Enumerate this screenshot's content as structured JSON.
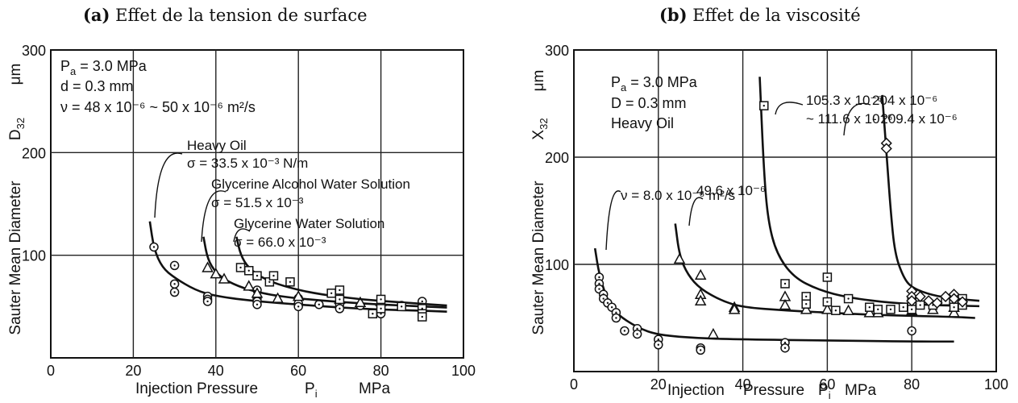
{
  "chart_data": [
    {
      "panel": "(a)",
      "title": "Effet de la tension de surface",
      "type": "scatter",
      "xlabel": "Injection Pressure",
      "xsymbol": "P",
      "xsymbol_sub": "i",
      "xunit": "MPa",
      "ylabel": "Sauter Mean Diameter",
      "ysymbol": "D",
      "ysymbol_sub": "32",
      "yunit": "μm",
      "xlim": [
        0,
        100
      ],
      "ylim": [
        0,
        300
      ],
      "xticks": [
        "0",
        "20",
        "40",
        "60",
        "80",
        "100"
      ],
      "yticks": [
        "100",
        "200",
        "300"
      ],
      "grid": true,
      "conditions": [
        {
          "sym": "P",
          "sub": "a",
          "rest": " = 3.0  MPa"
        },
        {
          "sym": "d",
          "sub": "",
          "rest": " = 0.3  mm"
        },
        {
          "sym": "ν",
          "sub": "",
          "rest": " = 48 x 10⁻⁶ ~ 50 x 10⁻⁶   m²/s"
        }
      ],
      "annotations": [
        {
          "id": "a-heavy-oil",
          "line1": "Heavy  Oil",
          "line2": "σ = 33.5 x 10⁻³  N/m"
        },
        {
          "id": "a-glyc-alcohol",
          "line1": "Glycerine  Alcohol  Water  Solution",
          "line2": "σ = 51.5 x 10⁻³"
        },
        {
          "id": "a-glyc-water",
          "line1": "Glycerine  Water  Solution",
          "line2": "σ = 66.0 x 10⁻³"
        }
      ],
      "series": [
        {
          "marker": "circle",
          "points": [
            [
              25,
              108
            ],
            [
              30,
              90
            ],
            [
              30,
              72
            ],
            [
              30,
              64
            ],
            [
              38,
              60
            ],
            [
              38,
              57
            ],
            [
              38,
              55
            ],
            [
              50,
              66
            ],
            [
              50,
              58
            ],
            [
              50,
              55
            ],
            [
              50,
              52
            ],
            [
              60,
              58
            ],
            [
              60,
              53
            ],
            [
              60,
              50
            ],
            [
              65,
              52
            ],
            [
              70,
              52
            ],
            [
              70,
              48
            ],
            [
              75,
              51
            ],
            [
              80,
              50
            ],
            [
              80,
              47
            ],
            [
              80,
              43
            ],
            [
              85,
              51
            ],
            [
              90,
              55
            ],
            [
              90,
              49
            ]
          ],
          "curve": [
            [
              24,
              133
            ],
            [
              25,
              106
            ],
            [
              27,
              88
            ],
            [
              30,
              78
            ],
            [
              35,
              66
            ],
            [
              40,
              60
            ],
            [
              50,
              55
            ],
            [
              60,
              52
            ],
            [
              70,
              49
            ],
            [
              80,
              47
            ],
            [
              90,
              46
            ],
            [
              96,
              45
            ]
          ]
        },
        {
          "marker": "triangle",
          "points": [
            [
              38,
              88
            ],
            [
              40,
              82
            ],
            [
              42,
              77
            ],
            [
              48,
              70
            ],
            [
              50,
              63
            ],
            [
              55,
              58
            ],
            [
              60,
              60
            ],
            [
              70,
              57
            ],
            [
              75,
              54
            ],
            [
              80,
              55
            ]
          ],
          "curve": [
            [
              37,
              118
            ],
            [
              38,
              96
            ],
            [
              40,
              83
            ],
            [
              43,
              74
            ],
            [
              48,
              66
            ],
            [
              55,
              60
            ],
            [
              65,
              56
            ],
            [
              75,
              53
            ],
            [
              85,
              51
            ],
            [
              96,
              49
            ]
          ]
        },
        {
          "marker": "square",
          "points": [
            [
              46,
              88
            ],
            [
              48,
              85
            ],
            [
              50,
              80
            ],
            [
              53,
              74
            ],
            [
              54,
              80
            ],
            [
              58,
              74
            ],
            [
              68,
              63
            ],
            [
              70,
              66
            ],
            [
              70,
              57
            ],
            [
              78,
              43
            ],
            [
              80,
              48
            ],
            [
              80,
              57
            ],
            [
              85,
              50
            ],
            [
              90,
              48
            ],
            [
              90,
              43
            ],
            [
              90,
              40
            ]
          ],
          "curve": [
            [
              45,
              118
            ],
            [
              46,
              100
            ],
            [
              48,
              87
            ],
            [
              52,
              76
            ],
            [
              58,
              68
            ],
            [
              65,
              62
            ],
            [
              75,
              57
            ],
            [
              85,
              54
            ],
            [
              96,
              51
            ]
          ]
        }
      ]
    },
    {
      "panel": "(b)",
      "title": "Effet de la viscosité",
      "type": "scatter",
      "xlabel": "Injection",
      "xlabel2": "Pressure",
      "xsymbol": "P",
      "xsymbol_sub": "i",
      "xunit": "MPa",
      "ylabel": "Sauter Mean Diameter",
      "ysymbol": "X",
      "ysymbol_sub": "32",
      "yunit": "μm",
      "xlim": [
        0,
        100
      ],
      "ylim": [
        0,
        300
      ],
      "xticks": [
        "0",
        "20",
        "40",
        "60",
        "80",
        "100"
      ],
      "yticks": [
        "100",
        "200",
        "300"
      ],
      "grid": true,
      "conditions": [
        {
          "sym": "P",
          "sub": "a",
          "rest": " = 3.0   MPa"
        },
        {
          "sym": "D",
          "sub": "",
          "rest": " = 0.3  mm"
        },
        {
          "sym": "Heavy  Oil",
          "sub": "",
          "rest": ""
        }
      ],
      "annotations": [
        {
          "id": "b-nu-8",
          "line1": "ν = 8.0 x 10⁻⁶  m²/s",
          "line2": ""
        },
        {
          "id": "b-nu-49",
          "line1": "49.6 x 10⁻⁶",
          "line2": ""
        },
        {
          "id": "b-nu-105",
          "line1": "105.3 x 10⁻⁶",
          "line2": "~ 111.6 x 10⁻⁶"
        },
        {
          "id": "b-nu-204",
          "line1": "204 x 10⁻⁶",
          "line2": "- 209.4 x 10⁻⁶"
        }
      ],
      "series": [
        {
          "marker": "circle",
          "points": [
            [
              6,
              88
            ],
            [
              6,
              82
            ],
            [
              6,
              77
            ],
            [
              7,
              72
            ],
            [
              7,
              68
            ],
            [
              8,
              64
            ],
            [
              9,
              60
            ],
            [
              10,
              55
            ],
            [
              10,
              50
            ],
            [
              12,
              38
            ],
            [
              15,
              40
            ],
            [
              15,
              35
            ],
            [
              20,
              30
            ],
            [
              20,
              25
            ],
            [
              30,
              22
            ],
            [
              30,
              20
            ],
            [
              50,
              27
            ],
            [
              50,
              22
            ],
            [
              80,
              38
            ]
          ],
          "curve": [
            [
              5,
              115
            ],
            [
              6,
              90
            ],
            [
              8,
              66
            ],
            [
              10,
              54
            ],
            [
              15,
              41
            ],
            [
              20,
              34
            ],
            [
              30,
              31
            ],
            [
              40,
              30
            ],
            [
              60,
              29
            ],
            [
              80,
              28
            ],
            [
              90,
              28
            ]
          ]
        },
        {
          "marker": "triangle",
          "points": [
            [
              25,
              105
            ],
            [
              30,
              90
            ],
            [
              30,
              72
            ],
            [
              30,
              66
            ],
            [
              33,
              35
            ],
            [
              38,
              60
            ],
            [
              38,
              58
            ],
            [
              50,
              70
            ],
            [
              50,
              62
            ],
            [
              55,
              58
            ],
            [
              60,
              58
            ],
            [
              65,
              57
            ],
            [
              70,
              55
            ],
            [
              72,
              55
            ],
            [
              80,
              57
            ],
            [
              85,
              58
            ],
            [
              90,
              60
            ],
            [
              90,
              55
            ]
          ],
          "curve": [
            [
              24,
              138
            ],
            [
              25,
              108
            ],
            [
              27,
              90
            ],
            [
              30,
              77
            ],
            [
              35,
              66
            ],
            [
              40,
              60
            ],
            [
              50,
              57
            ],
            [
              60,
              55
            ],
            [
              70,
              53
            ],
            [
              80,
              52
            ],
            [
              90,
              51
            ],
            [
              95,
              50
            ]
          ]
        },
        {
          "marker": "square",
          "points": [
            [
              45,
              248
            ],
            [
              50,
              82
            ],
            [
              55,
              70
            ],
            [
              55,
              63
            ],
            [
              60,
              88
            ],
            [
              60,
              65
            ],
            [
              62,
              57
            ],
            [
              65,
              68
            ],
            [
              70,
              60
            ],
            [
              72,
              58
            ],
            [
              75,
              58
            ],
            [
              78,
              60
            ],
            [
              80,
              65
            ],
            [
              80,
              58
            ],
            [
              82,
              62
            ],
            [
              85,
              62
            ],
            [
              88,
              66
            ],
            [
              90,
              60
            ],
            [
              92,
              68
            ],
            [
              92,
              62
            ]
          ],
          "curve": [
            [
              44,
              275
            ],
            [
              45,
              185
            ],
            [
              46,
              140
            ],
            [
              48,
              110
            ],
            [
              52,
              88
            ],
            [
              58,
              76
            ],
            [
              65,
              69
            ],
            [
              75,
              64
            ],
            [
              85,
              62
            ],
            [
              96,
              61
            ]
          ]
        },
        {
          "marker": "diamond",
          "points": [
            [
              74,
              213
            ],
            [
              74,
              208
            ],
            [
              80,
              75
            ],
            [
              80,
              70
            ],
            [
              80,
              66
            ],
            [
              82,
              70
            ],
            [
              84,
              66
            ],
            [
              86,
              64
            ],
            [
              88,
              70
            ],
            [
              90,
              72
            ],
            [
              90,
              68
            ],
            [
              92,
              65
            ]
          ],
          "curve": [
            [
              73,
              258
            ],
            [
              74,
              205
            ],
            [
              75,
              150
            ],
            [
              76,
              110
            ],
            [
              78,
              88
            ],
            [
              80,
              78
            ],
            [
              85,
              71
            ],
            [
              90,
              68
            ],
            [
              96,
              66
            ]
          ]
        }
      ]
    }
  ]
}
